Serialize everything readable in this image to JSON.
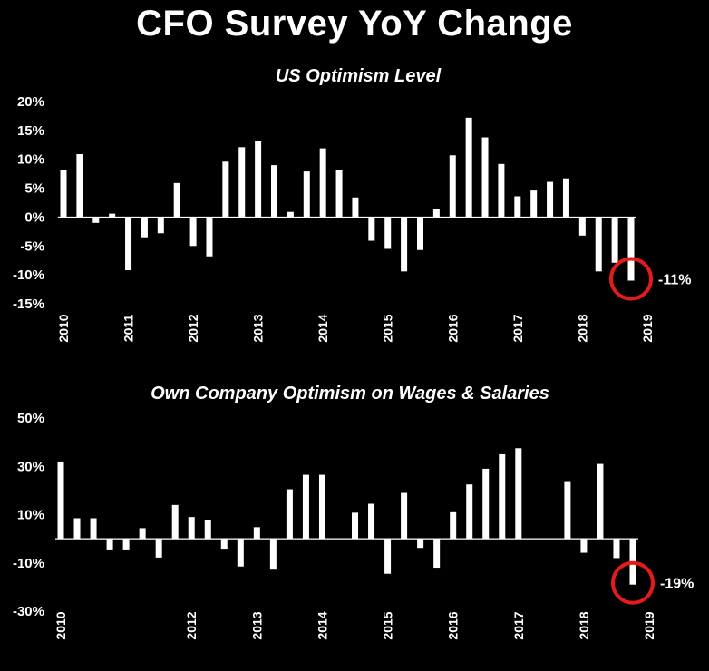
{
  "title": "CFO Survey YoY Change",
  "chart_data": [
    {
      "type": "bar",
      "title": "US Optimism Level",
      "xlabel": "",
      "ylabel": "",
      "ylim": [
        -15,
        20
      ],
      "yticks": [
        20,
        15,
        10,
        5,
        0,
        -5,
        -10,
        -15
      ],
      "ytick_labels": [
        "20%",
        "15%",
        "10%",
        "5%",
        "0%",
        "-5%",
        "-10%",
        "-15%"
      ],
      "x_start": 2010.0,
      "x_step": 0.25,
      "xticks": [
        "2010",
        "2011",
        "2012",
        "2013",
        "2014",
        "2015",
        "2016",
        "2017",
        "2018",
        "2019"
      ],
      "values": [
        8.2,
        10.9,
        -1.0,
        0.6,
        -9.2,
        -3.5,
        -2.8,
        5.9,
        -5.0,
        -6.8,
        9.6,
        12.1,
        13.2,
        9.0,
        0.9,
        7.9,
        11.9,
        8.2,
        3.4,
        -4.1,
        -5.5,
        -9.4,
        -5.7,
        1.4,
        10.7,
        17.2,
        13.8,
        9.2,
        3.6,
        4.6,
        6.1,
        6.7,
        -3.2,
        -9.4,
        -7.9,
        -11.0
      ],
      "highlight_index": 35,
      "highlight_label": "-11%",
      "grid": false,
      "colors": {
        "bar": "#ffffff",
        "highlight": "#e31b1b",
        "background": "#000000"
      }
    },
    {
      "type": "bar",
      "title": "Own Company Optimism on Wages & Salaries",
      "xlabel": "",
      "ylabel": "",
      "ylim": [
        -30,
        50
      ],
      "yticks": [
        50,
        30,
        10,
        -10,
        -30
      ],
      "ytick_labels": [
        "50%",
        "30%",
        "10%",
        "-10%",
        "-30%"
      ],
      "x_start": 2010.0,
      "x_step": 0.25,
      "xticks": [
        "2010",
        "2012",
        "2013",
        "2014",
        "2015",
        "2016",
        "2017",
        "2018",
        "2019"
      ],
      "values": [
        32.0,
        8.5,
        8.5,
        -4.8,
        -4.8,
        4.4,
        -7.8,
        14.0,
        9.0,
        7.8,
        -4.5,
        -11.5,
        4.8,
        -12.8,
        20.5,
        26.5,
        26.5,
        0,
        10.8,
        14.5,
        -14.5,
        19.0,
        -3.8,
        -12.0,
        11.0,
        22.5,
        29.0,
        35.0,
        37.5,
        0,
        0,
        23.5,
        -5.8,
        31.0,
        -8.0,
        -19.0
      ],
      "highlight_index": 35,
      "highlight_label": "-19%",
      "grid": false,
      "colors": {
        "bar": "#ffffff",
        "highlight": "#e31b1b",
        "background": "#000000"
      }
    }
  ]
}
